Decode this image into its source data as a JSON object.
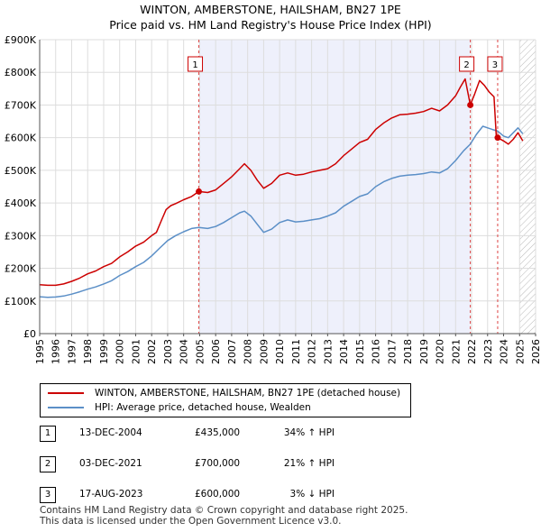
{
  "title_line1": "WINTON, AMBERSTONE, HAILSHAM, BN27 1PE",
  "title_line2": "Price paid vs. HM Land Registry's House Price Index (HPI)",
  "chart_data": {
    "type": "line",
    "title": "WINTON, AMBERSTONE, HAILSHAM, BN27 1PE — Price paid vs. HM Land Registry's House Price Index (HPI)",
    "xlim": [
      1995,
      2026
    ],
    "ylim": [
      0,
      900000
    ],
    "x_ticks": [
      "1995",
      "1996",
      "1997",
      "1998",
      "1999",
      "2000",
      "2001",
      "2002",
      "2003",
      "2004",
      "2005",
      "2006",
      "2007",
      "2008",
      "2009",
      "2010",
      "2011",
      "2012",
      "2013",
      "2014",
      "2015",
      "2016",
      "2017",
      "2018",
      "2019",
      "2020",
      "2021",
      "2022",
      "2023",
      "2024",
      "2025",
      "2026"
    ],
    "y_ticks": [
      {
        "value": 0,
        "label": "£0"
      },
      {
        "value": 100000,
        "label": "£100K"
      },
      {
        "value": 200000,
        "label": "£200K"
      },
      {
        "value": 300000,
        "label": "£300K"
      },
      {
        "value": 400000,
        "label": "£400K"
      },
      {
        "value": 500000,
        "label": "£500K"
      },
      {
        "value": 600000,
        "label": "£600K"
      },
      {
        "value": 700000,
        "label": "£700K"
      },
      {
        "value": 800000,
        "label": "£800K"
      },
      {
        "value": 900000,
        "label": "£900K"
      }
    ],
    "shaded_span": [
      2004.95,
      2021.92
    ],
    "future_hatch_from": 2025.0,
    "series": [
      {
        "name": "WINTON, AMBERSTONE, HAILSHAM, BN27 1PE (detached house)",
        "color": "#cc0000",
        "points": [
          [
            1995.0,
            150000
          ],
          [
            1995.5,
            148000
          ],
          [
            1996.0,
            148000
          ],
          [
            1996.5,
            152000
          ],
          [
            1997.0,
            160000
          ],
          [
            1997.5,
            170000
          ],
          [
            1998.0,
            183000
          ],
          [
            1998.5,
            192000
          ],
          [
            1999.0,
            205000
          ],
          [
            1999.5,
            215000
          ],
          [
            2000.0,
            235000
          ],
          [
            2000.5,
            250000
          ],
          [
            2001.0,
            268000
          ],
          [
            2001.5,
            280000
          ],
          [
            2002.0,
            300000
          ],
          [
            2002.3,
            310000
          ],
          [
            2002.6,
            345000
          ],
          [
            2002.9,
            380000
          ],
          [
            2003.2,
            392000
          ],
          [
            2003.5,
            398000
          ],
          [
            2004.0,
            410000
          ],
          [
            2004.5,
            420000
          ],
          [
            2004.95,
            435000
          ],
          [
            2005.5,
            432000
          ],
          [
            2006.0,
            440000
          ],
          [
            2006.5,
            460000
          ],
          [
            2007.0,
            480000
          ],
          [
            2007.5,
            505000
          ],
          [
            2007.8,
            520000
          ],
          [
            2008.2,
            500000
          ],
          [
            2008.6,
            470000
          ],
          [
            2009.0,
            445000
          ],
          [
            2009.5,
            460000
          ],
          [
            2010.0,
            485000
          ],
          [
            2010.5,
            492000
          ],
          [
            2011.0,
            485000
          ],
          [
            2011.5,
            488000
          ],
          [
            2012.0,
            495000
          ],
          [
            2012.5,
            500000
          ],
          [
            2013.0,
            505000
          ],
          [
            2013.5,
            520000
          ],
          [
            2014.0,
            545000
          ],
          [
            2014.5,
            565000
          ],
          [
            2015.0,
            585000
          ],
          [
            2015.5,
            595000
          ],
          [
            2016.0,
            625000
          ],
          [
            2016.5,
            645000
          ],
          [
            2017.0,
            660000
          ],
          [
            2017.5,
            670000
          ],
          [
            2018.0,
            672000
          ],
          [
            2018.5,
            675000
          ],
          [
            2019.0,
            680000
          ],
          [
            2019.5,
            690000
          ],
          [
            2020.0,
            682000
          ],
          [
            2020.5,
            700000
          ],
          [
            2021.0,
            728000
          ],
          [
            2021.3,
            755000
          ],
          [
            2021.6,
            780000
          ],
          [
            2021.92,
            700000
          ],
          [
            2022.2,
            735000
          ],
          [
            2022.5,
            775000
          ],
          [
            2022.8,
            760000
          ],
          [
            2023.1,
            740000
          ],
          [
            2023.4,
            725000
          ],
          [
            2023.55,
            600000
          ],
          [
            2023.63,
            600000
          ],
          [
            2024.0,
            590000
          ],
          [
            2024.3,
            580000
          ],
          [
            2024.6,
            595000
          ],
          [
            2024.9,
            615000
          ],
          [
            2025.2,
            590000
          ]
        ]
      },
      {
        "name": "HPI: Average price, detached house, Wealden",
        "color": "#5b8fc7",
        "points": [
          [
            1995.0,
            113000
          ],
          [
            1995.5,
            111000
          ],
          [
            1996.0,
            112000
          ],
          [
            1996.5,
            115000
          ],
          [
            1997.0,
            121000
          ],
          [
            1997.5,
            128000
          ],
          [
            1998.0,
            136000
          ],
          [
            1998.5,
            143000
          ],
          [
            1999.0,
            152000
          ],
          [
            1999.5,
            162000
          ],
          [
            2000.0,
            178000
          ],
          [
            2000.5,
            190000
          ],
          [
            2001.0,
            205000
          ],
          [
            2001.5,
            218000
          ],
          [
            2002.0,
            238000
          ],
          [
            2002.5,
            262000
          ],
          [
            2003.0,
            285000
          ],
          [
            2003.5,
            300000
          ],
          [
            2004.0,
            312000
          ],
          [
            2004.5,
            322000
          ],
          [
            2004.95,
            325000
          ],
          [
            2005.5,
            322000
          ],
          [
            2006.0,
            328000
          ],
          [
            2006.5,
            340000
          ],
          [
            2007.0,
            355000
          ],
          [
            2007.5,
            370000
          ],
          [
            2007.8,
            375000
          ],
          [
            2008.2,
            360000
          ],
          [
            2008.6,
            335000
          ],
          [
            2009.0,
            310000
          ],
          [
            2009.5,
            320000
          ],
          [
            2010.0,
            340000
          ],
          [
            2010.5,
            348000
          ],
          [
            2011.0,
            342000
          ],
          [
            2011.5,
            344000
          ],
          [
            2012.0,
            348000
          ],
          [
            2012.5,
            352000
          ],
          [
            2013.0,
            360000
          ],
          [
            2013.5,
            370000
          ],
          [
            2014.0,
            390000
          ],
          [
            2014.5,
            405000
          ],
          [
            2015.0,
            420000
          ],
          [
            2015.5,
            428000
          ],
          [
            2016.0,
            450000
          ],
          [
            2016.5,
            465000
          ],
          [
            2017.0,
            475000
          ],
          [
            2017.5,
            482000
          ],
          [
            2018.0,
            485000
          ],
          [
            2018.5,
            487000
          ],
          [
            2019.0,
            490000
          ],
          [
            2019.5,
            495000
          ],
          [
            2020.0,
            492000
          ],
          [
            2020.5,
            505000
          ],
          [
            2021.0,
            530000
          ],
          [
            2021.5,
            560000
          ],
          [
            2021.92,
            580000
          ],
          [
            2022.3,
            610000
          ],
          [
            2022.7,
            635000
          ],
          [
            2023.0,
            630000
          ],
          [
            2023.3,
            625000
          ],
          [
            2023.63,
            620000
          ],
          [
            2024.0,
            605000
          ],
          [
            2024.3,
            600000
          ],
          [
            2024.6,
            615000
          ],
          [
            2024.9,
            630000
          ],
          [
            2025.2,
            612000
          ]
        ]
      }
    ],
    "sales": [
      {
        "marker": "1",
        "x": 2004.95,
        "price": 435000,
        "date": "13-DEC-2004",
        "price_label": "£435,000",
        "hpi": "34% ↑ HPI"
      },
      {
        "marker": "2",
        "x": 2021.92,
        "price": 700000,
        "date": "03-DEC-2021",
        "price_label": "£700,000",
        "hpi": "21% ↑ HPI"
      },
      {
        "marker": "3",
        "x": 2023.63,
        "price": 600000,
        "date": "17-AUG-2023",
        "price_label": "£600,000",
        "hpi": "3% ↓ HPI"
      }
    ]
  },
  "legend": {
    "property_label": "WINTON, AMBERSTONE, HAILSHAM, BN27 1PE (detached house)",
    "hpi_label": "HPI: Average price, detached house, Wealden",
    "property_color": "#cc0000",
    "hpi_color": "#5b8fc7"
  },
  "footer": {
    "line1": "Contains HM Land Registry data © Crown copyright and database right 2025.",
    "line2": "This data is licensed under the Open Government Licence v3.0."
  }
}
